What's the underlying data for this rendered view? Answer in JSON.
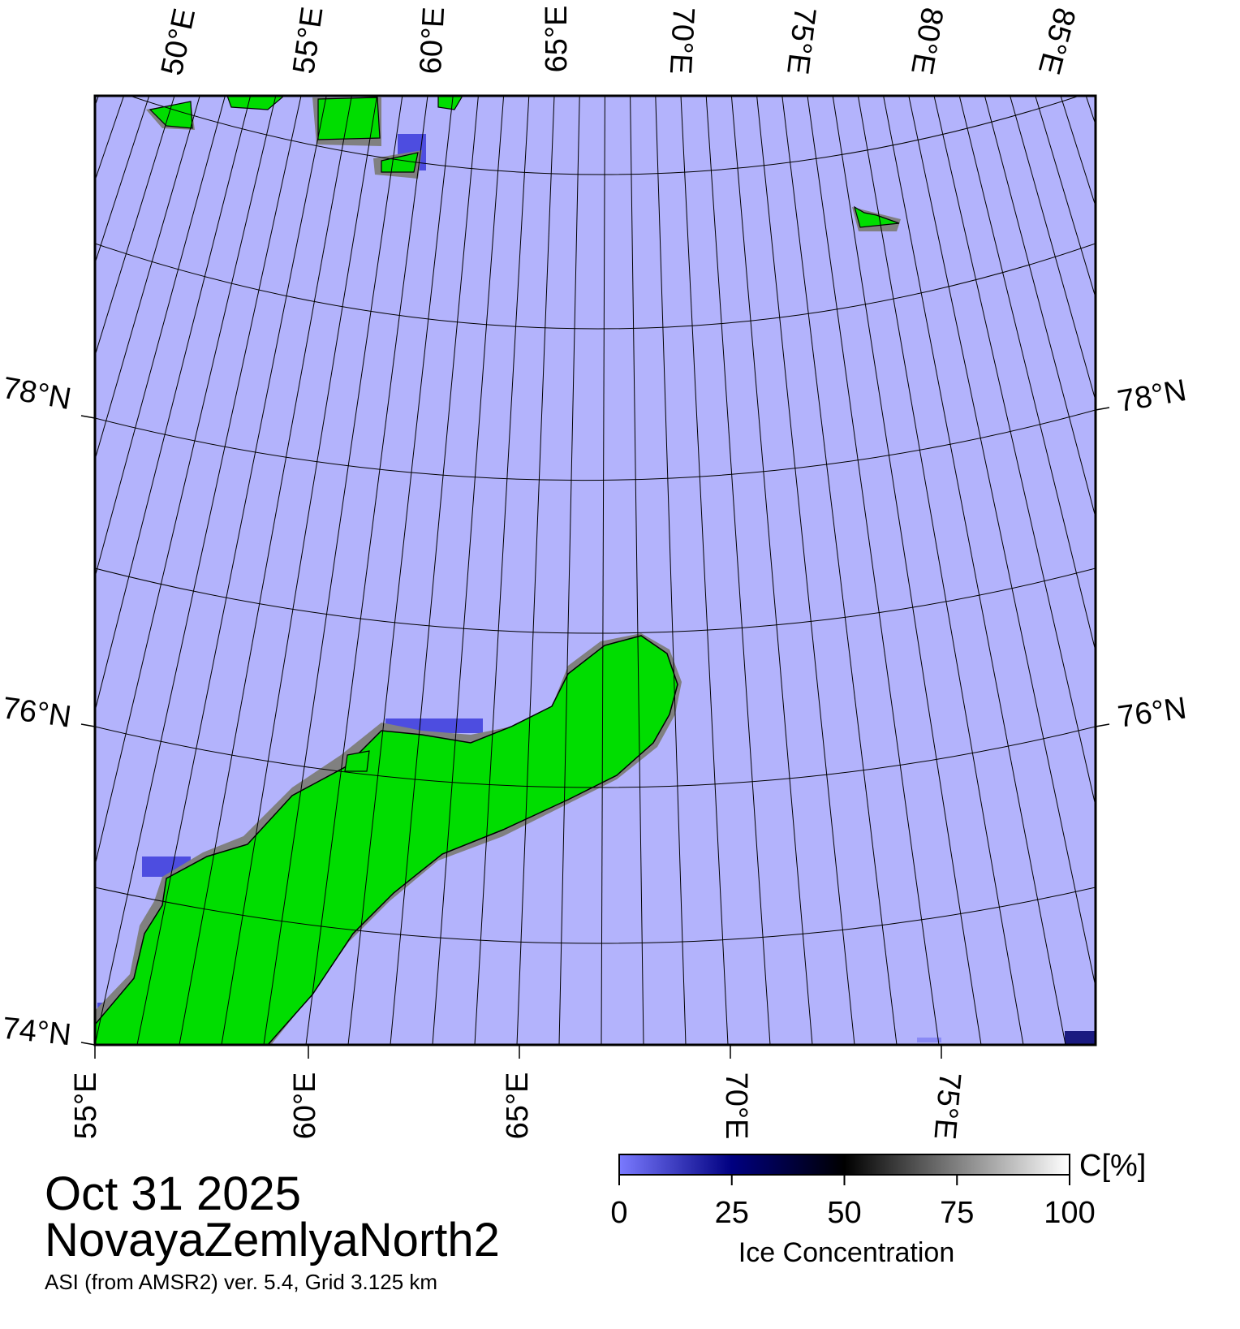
{
  "map": {
    "top_labels": [
      "50°E",
      "55°E",
      "60°E",
      "65°E",
      "70°E",
      "75°E",
      "80°E",
      "85°E"
    ],
    "bottom_labels": [
      "55°E",
      "60°E",
      "65°E",
      "70°E",
      "75°E"
    ],
    "left_labels": [
      "78°N",
      "76°N",
      "74°N"
    ],
    "right_labels": [
      "78°N",
      "76°N"
    ]
  },
  "footer": {
    "date": "Oct 31 2025",
    "region": "NovayaZemlyaNorth2",
    "source": "ASI (from AMSR2) ver. 5.4,  Grid 3.125 km"
  },
  "colorbar": {
    "title": "Ice Concentration",
    "unit": "C[%]",
    "ticks": [
      0,
      25,
      50,
      75,
      100
    ]
  }
}
